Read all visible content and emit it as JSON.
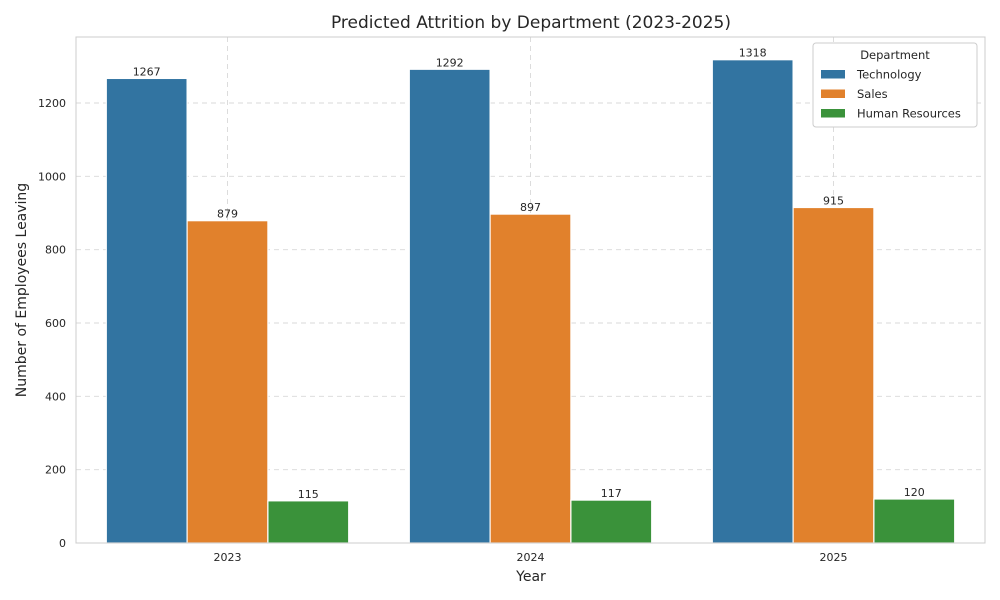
{
  "chart_data": {
    "type": "bar",
    "title": "Predicted Attrition by Department (2023-2025)",
    "xlabel": "Year",
    "ylabel": "Number of Employees Leaving",
    "categories": [
      "2023",
      "2024",
      "2025"
    ],
    "series": [
      {
        "name": "Technology",
        "values": [
          1267,
          1292,
          1318
        ],
        "color": "#3274a1"
      },
      {
        "name": "Sales",
        "values": [
          879,
          897,
          915
        ],
        "color": "#e1812c"
      },
      {
        "name": "Human Resources",
        "values": [
          115,
          117,
          120
        ],
        "color": "#3a923a"
      }
    ],
    "ylim": [
      0,
      1380
    ],
    "yticks": [
      0,
      200,
      400,
      600,
      800,
      1000,
      1200
    ],
    "grid": true,
    "legend": {
      "title": "Department",
      "position": "top-right"
    }
  }
}
